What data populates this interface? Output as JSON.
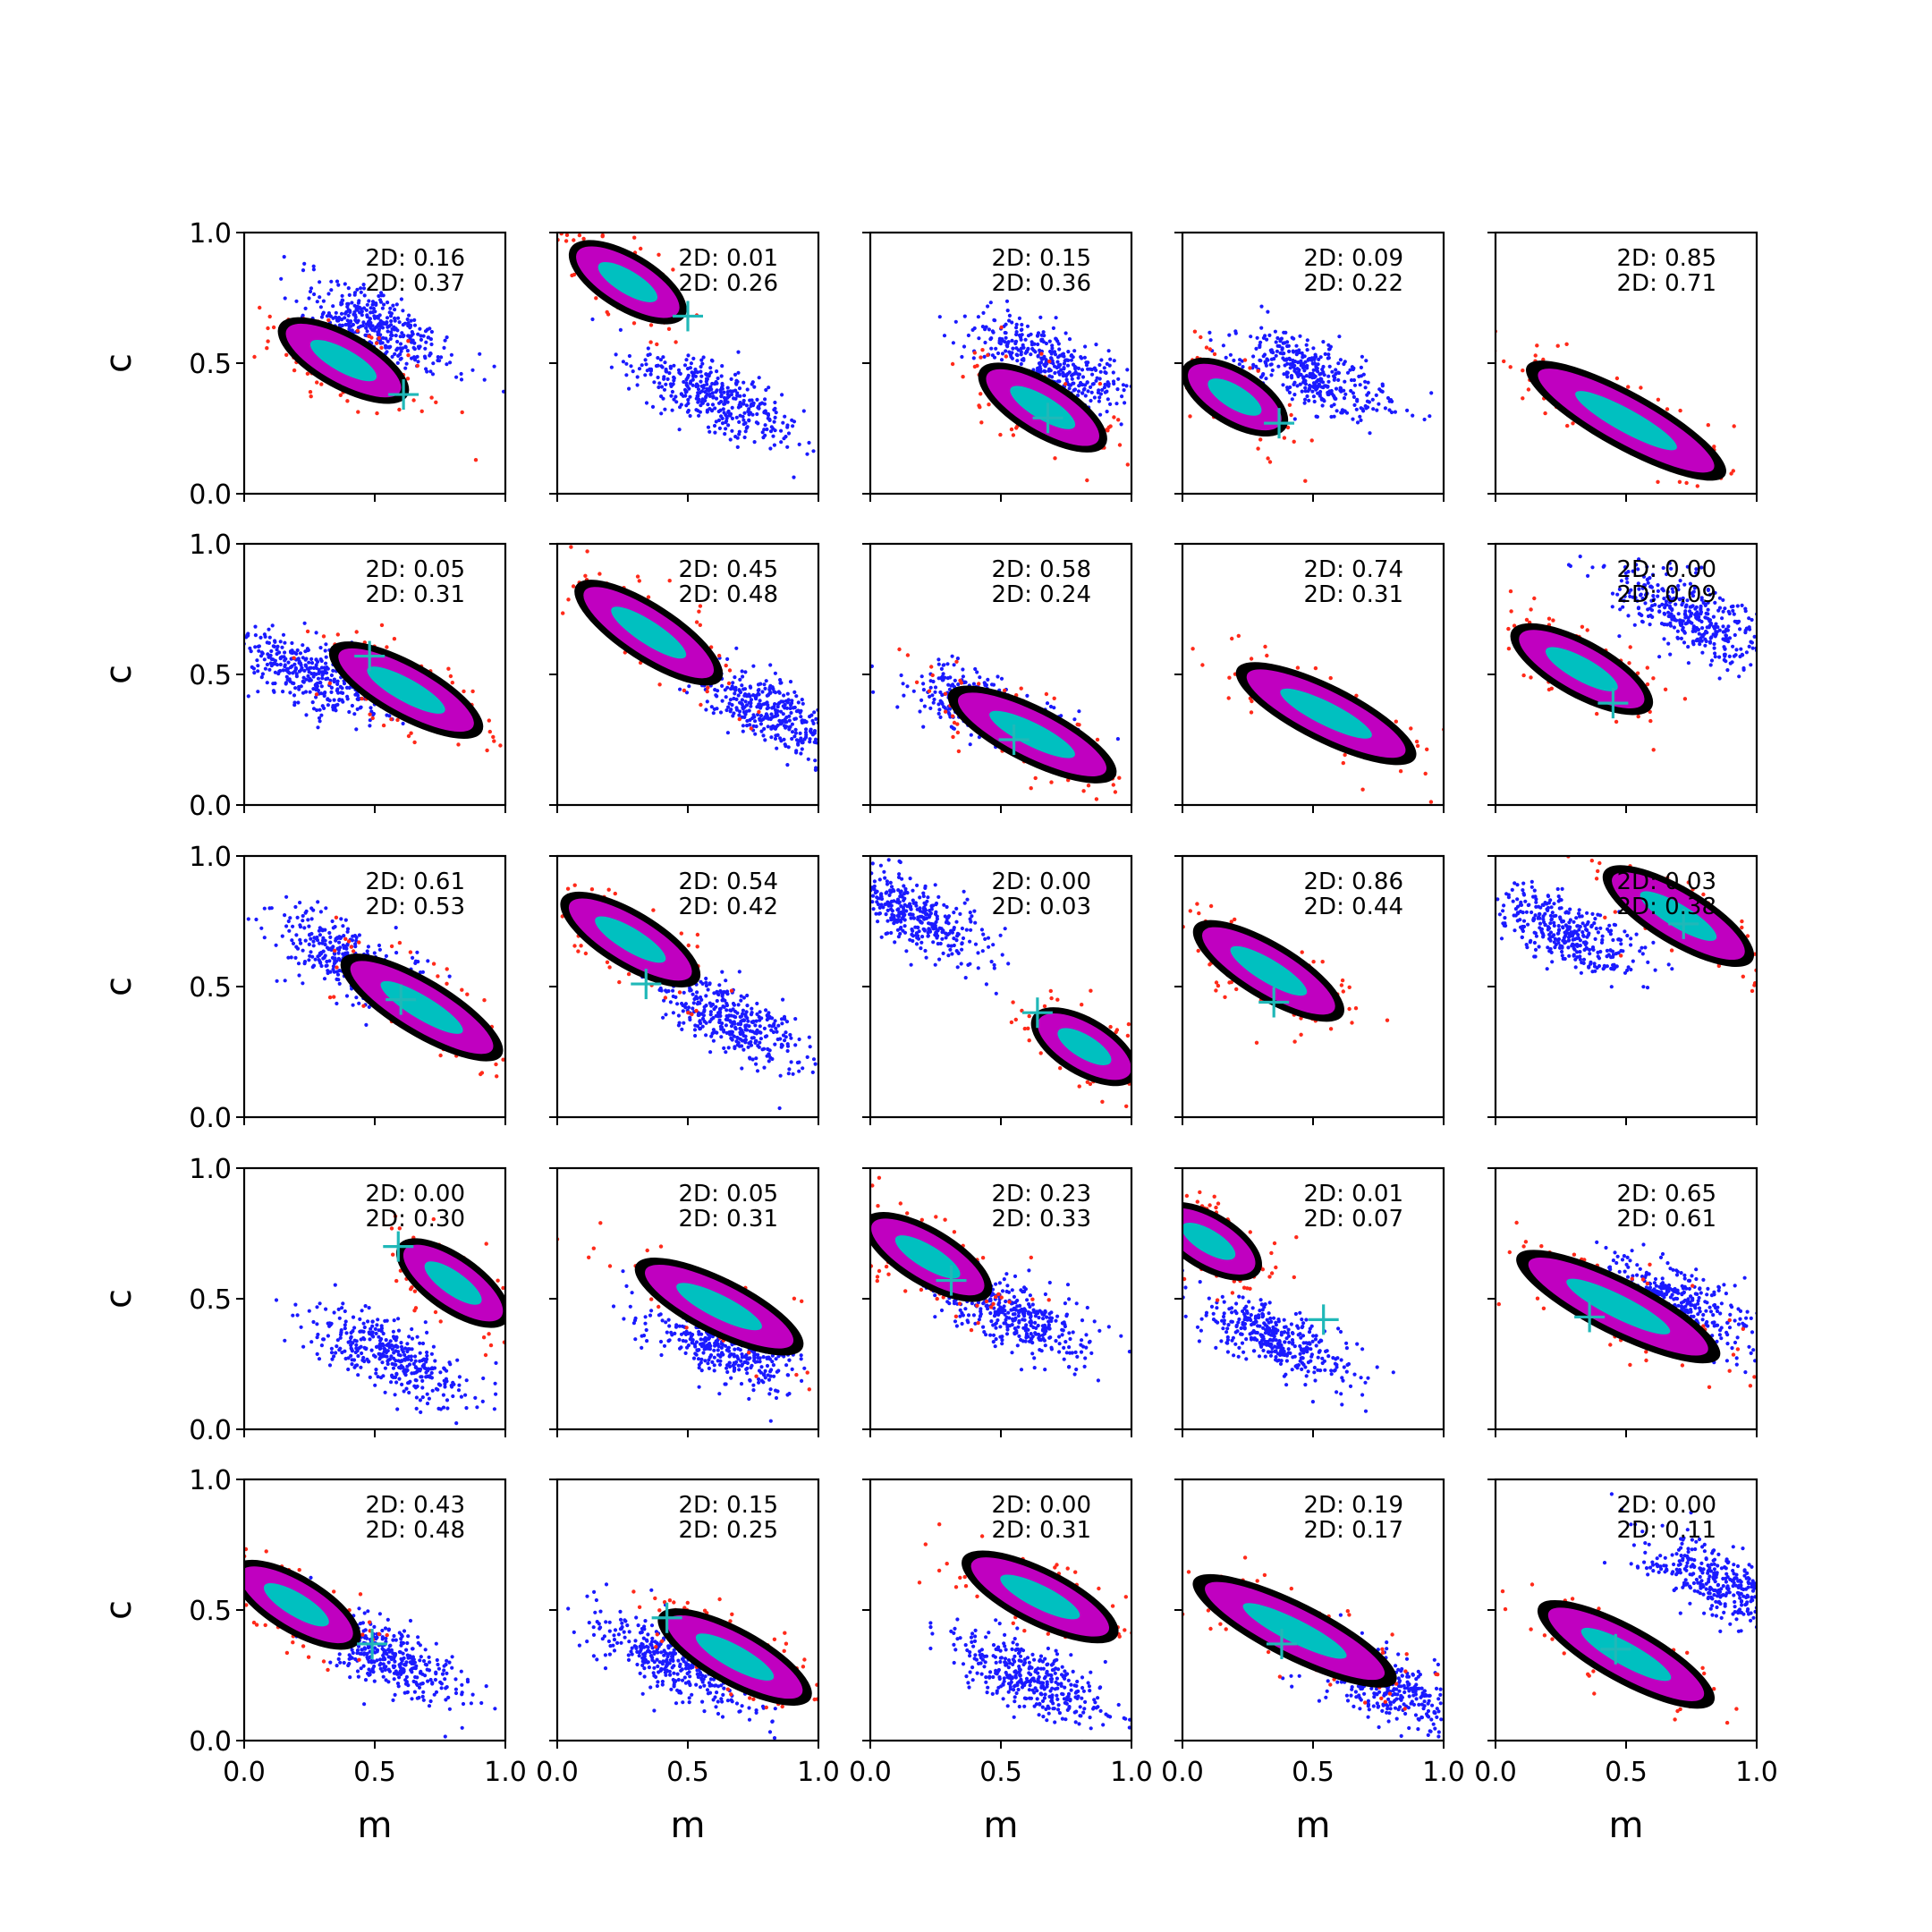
{
  "figure": {
    "rows": 5,
    "cols": 5,
    "xlabel": "m",
    "ylabel": "c",
    "xlim": [
      0,
      1
    ],
    "ylim": [
      0,
      1
    ],
    "xticks": [
      "0.0",
      "0.5",
      "1.0"
    ],
    "yticks": [
      "0.0",
      "0.5",
      "1.0"
    ],
    "annotation_prefix": "2D: ",
    "colors": {
      "outer_points": "#ff2a1a",
      "outer_contour": "#000000",
      "region": "#c000c0",
      "core": "#00c0c0",
      "marker": "#20b8b8",
      "comparison_points": "#1a1aff"
    }
  },
  "chart_data": [
    {
      "panel": 1,
      "type": "scatter",
      "annotations": [
        "0.16",
        "0.37"
      ],
      "marker": [
        0.61,
        0.38
      ],
      "main": {
        "center": [
          0.38,
          0.51
        ],
        "slope": -0.55,
        "length": 0.55
      },
      "comparison": {
        "center": [
          0.52,
          0.63
        ],
        "slope": -0.5
      }
    },
    {
      "panel": 2,
      "type": "scatter",
      "annotations": [
        "0.01",
        "0.26"
      ],
      "marker": [
        0.5,
        0.68
      ],
      "main": {
        "center": [
          0.27,
          0.81
        ],
        "slope": -0.6,
        "length": 0.5
      },
      "comparison": {
        "center": [
          0.6,
          0.37
        ],
        "slope": -0.45
      }
    },
    {
      "panel": 3,
      "type": "scatter",
      "annotations": [
        "0.15",
        "0.36"
      ],
      "marker": [
        0.68,
        0.29
      ],
      "main": {
        "center": [
          0.66,
          0.33
        ],
        "slope": -0.6,
        "length": 0.55
      },
      "comparison": {
        "center": [
          0.7,
          0.5
        ],
        "slope": -0.5
      }
    },
    {
      "panel": 4,
      "type": "scatter",
      "annotations": [
        "0.09",
        "0.22"
      ],
      "marker": [
        0.37,
        0.27
      ],
      "main": {
        "center": [
          0.2,
          0.37
        ],
        "slope": -0.6,
        "length": 0.45
      },
      "comparison": {
        "center": [
          0.5,
          0.46
        ],
        "slope": -0.45
      }
    },
    {
      "panel": 5,
      "type": "scatter",
      "annotations": [
        "0.85",
        "0.71"
      ],
      "marker": null,
      "main": {
        "center": [
          0.5,
          0.28
        ],
        "slope": -0.55,
        "length": 0.85
      },
      "comparison": null
    },
    {
      "panel": 6,
      "type": "scatter",
      "annotations": [
        "0.05",
        "0.31"
      ],
      "marker": [
        0.48,
        0.57
      ],
      "main": {
        "center": [
          0.62,
          0.44
        ],
        "slope": -0.55,
        "length": 0.65
      },
      "comparison": {
        "center": [
          0.25,
          0.5
        ],
        "slope": -0.45
      }
    },
    {
      "panel": 7,
      "type": "scatter",
      "annotations": [
        "0.45",
        "0.48"
      ],
      "marker": null,
      "main": {
        "center": [
          0.35,
          0.66
        ],
        "slope": -0.65,
        "length": 0.65
      },
      "comparison": {
        "center": [
          0.82,
          0.36
        ],
        "slope": -0.5
      }
    },
    {
      "panel": 8,
      "type": "scatter",
      "annotations": [
        "0.58",
        "0.24"
      ],
      "marker": [
        0.55,
        0.25
      ],
      "main": {
        "center": [
          0.62,
          0.27
        ],
        "slope": -0.5,
        "length": 0.7
      },
      "comparison": {
        "center": [
          0.45,
          0.37
        ],
        "slope": -0.45
      }
    },
    {
      "panel": 9,
      "type": "scatter",
      "annotations": [
        "0.74",
        "0.31"
      ],
      "marker": null,
      "main": {
        "center": [
          0.55,
          0.35
        ],
        "slope": -0.5,
        "length": 0.75
      },
      "comparison": null
    },
    {
      "panel": 10,
      "type": "scatter",
      "annotations": [
        "0.00",
        "0.09"
      ],
      "marker": [
        0.45,
        0.39
      ],
      "main": {
        "center": [
          0.33,
          0.52
        ],
        "slope": -0.55,
        "length": 0.6
      },
      "comparison": {
        "center": [
          0.75,
          0.72
        ],
        "slope": -0.5
      }
    },
    {
      "panel": 11,
      "type": "scatter",
      "annotations": [
        "0.61",
        "0.53"
      ],
      "marker": [
        0.6,
        0.45
      ],
      "main": {
        "center": [
          0.68,
          0.42
        ],
        "slope": -0.6,
        "length": 0.7
      },
      "comparison": {
        "center": [
          0.4,
          0.6
        ],
        "slope": -0.55
      }
    },
    {
      "panel": 12,
      "type": "scatter",
      "annotations": [
        "0.54",
        "0.42"
      ],
      "marker": [
        0.34,
        0.51
      ],
      "main": {
        "center": [
          0.28,
          0.68
        ],
        "slope": -0.6,
        "length": 0.6
      },
      "comparison": {
        "center": [
          0.66,
          0.38
        ],
        "slope": -0.6
      }
    },
    {
      "panel": 13,
      "type": "scatter",
      "annotations": [
        "0.00",
        "0.03"
      ],
      "marker": [
        0.64,
        0.4
      ],
      "main": {
        "center": [
          0.82,
          0.27
        ],
        "slope": -0.6,
        "length": 0.45
      },
      "comparison": {
        "center": [
          0.17,
          0.78
        ],
        "slope": -0.55
      }
    },
    {
      "panel": 14,
      "type": "scatter",
      "annotations": [
        "0.86",
        "0.44"
      ],
      "marker": [
        0.35,
        0.44
      ],
      "main": {
        "center": [
          0.33,
          0.56
        ],
        "slope": -0.6,
        "length": 0.65
      },
      "comparison": null
    },
    {
      "panel": 15,
      "type": "scatter",
      "annotations": [
        "0.03",
        "0.38"
      ],
      "marker": [
        0.72,
        0.74
      ],
      "main": {
        "center": [
          0.7,
          0.77
        ],
        "slope": -0.6,
        "length": 0.65
      },
      "comparison": {
        "center": [
          0.25,
          0.72
        ],
        "slope": -0.45
      }
    },
    {
      "panel": 16,
      "type": "scatter",
      "annotations": [
        "0.00",
        "0.30"
      ],
      "marker": [
        0.59,
        0.7
      ],
      "main": {
        "center": [
          0.8,
          0.56
        ],
        "slope": -0.7,
        "length": 0.5
      },
      "comparison": {
        "center": [
          0.55,
          0.28
        ],
        "slope": -0.45
      }
    },
    {
      "panel": 17,
      "type": "scatter",
      "annotations": [
        "0.05",
        "0.31"
      ],
      "marker": null,
      "main": {
        "center": [
          0.62,
          0.47
        ],
        "slope": -0.5,
        "length": 0.7
      },
      "comparison": {
        "center": [
          0.62,
          0.32
        ],
        "slope": -0.45
      }
    },
    {
      "panel": 18,
      "type": "scatter",
      "annotations": [
        "0.23",
        "0.33"
      ],
      "marker": [
        0.31,
        0.57
      ],
      "main": {
        "center": [
          0.22,
          0.66
        ],
        "slope": -0.6,
        "length": 0.55
      },
      "comparison": {
        "center": [
          0.55,
          0.44
        ],
        "slope": -0.45
      }
    },
    {
      "panel": 19,
      "type": "scatter",
      "annotations": [
        "0.01",
        "0.07"
      ],
      "marker": [
        0.54,
        0.42
      ],
      "main": {
        "center": [
          0.1,
          0.72
        ],
        "slope": -0.6,
        "length": 0.45
      },
      "comparison": {
        "center": [
          0.35,
          0.35
        ],
        "slope": -0.45
      }
    },
    {
      "panel": 20,
      "type": "scatter",
      "annotations": [
        "0.65",
        "0.61"
      ],
      "marker": [
        0.36,
        0.43
      ],
      "main": {
        "center": [
          0.47,
          0.47
        ],
        "slope": -0.5,
        "length": 0.85
      },
      "comparison": {
        "center": [
          0.7,
          0.48
        ],
        "slope": -0.5
      }
    },
    {
      "panel": 21,
      "type": "scatter",
      "annotations": [
        "0.43",
        "0.48"
      ],
      "marker": [
        0.49,
        0.37
      ],
      "main": {
        "center": [
          0.2,
          0.52
        ],
        "slope": -0.6,
        "length": 0.55
      },
      "comparison": {
        "center": [
          0.55,
          0.32
        ],
        "slope": -0.5
      }
    },
    {
      "panel": 22,
      "type": "scatter",
      "annotations": [
        "0.15",
        "0.25"
      ],
      "marker": [
        0.42,
        0.47
      ],
      "main": {
        "center": [
          0.68,
          0.32
        ],
        "slope": -0.55,
        "length": 0.65
      },
      "comparison": {
        "center": [
          0.45,
          0.3
        ],
        "slope": -0.45
      }
    },
    {
      "panel": 23,
      "type": "scatter",
      "annotations": [
        "0.00",
        "0.31"
      ],
      "marker": null,
      "main": {
        "center": [
          0.65,
          0.55
        ],
        "slope": -0.5,
        "length": 0.65
      },
      "comparison": {
        "center": [
          0.62,
          0.23
        ],
        "slope": -0.45
      }
    },
    {
      "panel": 24,
      "type": "scatter",
      "annotations": [
        "0.19",
        "0.17"
      ],
      "marker": [
        0.38,
        0.37
      ],
      "main": {
        "center": [
          0.43,
          0.42
        ],
        "slope": -0.5,
        "length": 0.85
      },
      "comparison": {
        "center": [
          0.75,
          0.22
        ],
        "slope": -0.5
      }
    },
    {
      "panel": 25,
      "type": "scatter",
      "annotations": [
        "0.00",
        "0.11"
      ],
      "marker": [
        0.46,
        0.35
      ],
      "main": {
        "center": [
          0.5,
          0.33
        ],
        "slope": -0.55,
        "length": 0.75
      },
      "comparison": {
        "center": [
          0.87,
          0.6
        ],
        "slope": -0.4
      }
    }
  ]
}
